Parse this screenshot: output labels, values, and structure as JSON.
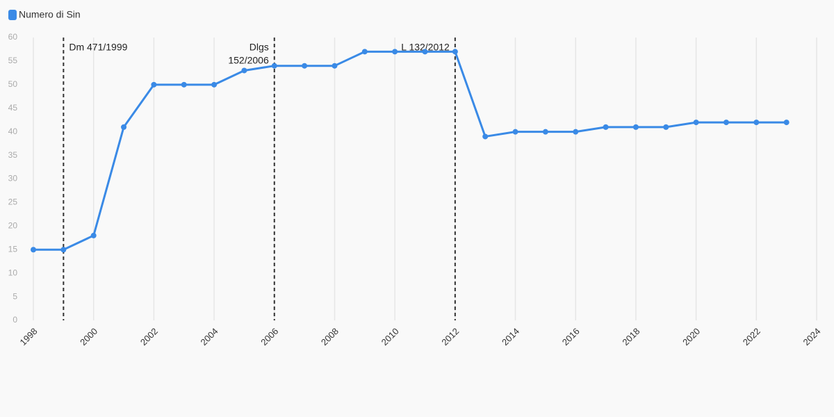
{
  "chart_data": {
    "type": "line",
    "x": [
      1998,
      1999,
      2000,
      2001,
      2002,
      2003,
      2004,
      2005,
      2006,
      2007,
      2008,
      2009,
      2010,
      2011,
      2012,
      2013,
      2014,
      2015,
      2016,
      2017,
      2018,
      2019,
      2020,
      2021,
      2022,
      2023
    ],
    "series": [
      {
        "name": "Numero di Sin",
        "color": "#3a8ae6",
        "values": [
          15,
          15,
          18,
          41,
          50,
          50,
          50,
          53,
          54,
          54,
          54,
          57,
          57,
          57,
          57,
          39,
          40,
          40,
          40,
          41,
          41,
          41,
          42,
          42,
          42,
          42
        ]
      }
    ],
    "xlim": [
      1998,
      2024
    ],
    "xticks": [
      1998,
      2000,
      2002,
      2004,
      2006,
      2008,
      2010,
      2012,
      2014,
      2016,
      2018,
      2020,
      2022,
      2024
    ],
    "ylim": [
      0,
      60
    ],
    "yticks": [
      0,
      5,
      10,
      15,
      20,
      25,
      30,
      35,
      40,
      45,
      50,
      55,
      60
    ],
    "grid": true,
    "annotations": [
      {
        "x": 1999,
        "lines": [
          "Dm 471/1999"
        ]
      },
      {
        "x": 2006,
        "lines": [
          "Dlgs",
          "152/2006"
        ]
      },
      {
        "x": 2012,
        "lines": [
          "L 132/2012"
        ]
      }
    ]
  }
}
